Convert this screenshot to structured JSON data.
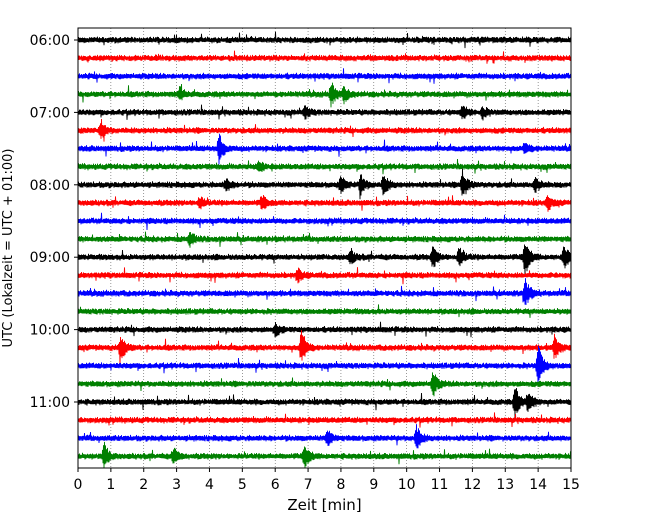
{
  "chart_data": {
    "type": "line",
    "title": "",
    "xlabel": "Zeit  [min]",
    "ylabel": "UTC (Lokalzeit = UTC + 01:00)",
    "xlim": [
      0,
      15
    ],
    "x_ticks": [
      "0",
      "1",
      "2",
      "3",
      "4",
      "5",
      "6",
      "7",
      "8",
      "9",
      "10",
      "11",
      "12",
      "13",
      "14",
      "15"
    ],
    "y_tick_labels": [
      "06:00",
      "07:00",
      "08:00",
      "09:00",
      "10:00",
      "11:00"
    ],
    "grid": "vertical dotted",
    "trace_colors": [
      "#000000",
      "#ff0000",
      "#0000ff",
      "#008000"
    ],
    "trace_interval_minutes": 15,
    "start_time": "06:00",
    "trace_count": 24,
    "events": [
      {
        "trace": "06:45",
        "x": 3.1,
        "amp": 0.5
      },
      {
        "trace": "06:45",
        "x": 7.7,
        "amp": 1.0
      },
      {
        "trace": "06:45",
        "x": 8.1,
        "amp": 0.6
      },
      {
        "trace": "07:00",
        "x": 6.9,
        "amp": 0.5
      },
      {
        "trace": "07:00",
        "x": 11.7,
        "amp": 0.6
      },
      {
        "trace": "07:00",
        "x": 12.3,
        "amp": 0.5
      },
      {
        "trace": "07:15",
        "x": 0.7,
        "amp": 0.8
      },
      {
        "trace": "07:30",
        "x": 4.3,
        "amp": 1.2
      },
      {
        "trace": "07:30",
        "x": 13.6,
        "amp": 0.5
      },
      {
        "trace": "07:45",
        "x": 5.5,
        "amp": 0.4
      },
      {
        "trace": "08:00",
        "x": 4.5,
        "amp": 0.5
      },
      {
        "trace": "08:00",
        "x": 8.0,
        "amp": 0.7
      },
      {
        "trace": "08:00",
        "x": 8.6,
        "amp": 0.9
      },
      {
        "trace": "08:00",
        "x": 9.3,
        "amp": 0.9
      },
      {
        "trace": "08:00",
        "x": 11.7,
        "amp": 1.3
      },
      {
        "trace": "08:00",
        "x": 13.9,
        "amp": 0.6
      },
      {
        "trace": "08:15",
        "x": 3.7,
        "amp": 0.5
      },
      {
        "trace": "08:15",
        "x": 5.6,
        "amp": 0.6
      },
      {
        "trace": "08:15",
        "x": 14.3,
        "amp": 0.6
      },
      {
        "trace": "08:45",
        "x": 3.4,
        "amp": 0.6
      },
      {
        "trace": "09:00",
        "x": 8.3,
        "amp": 0.6
      },
      {
        "trace": "09:00",
        "x": 10.8,
        "amp": 0.9
      },
      {
        "trace": "09:00",
        "x": 11.6,
        "amp": 0.8
      },
      {
        "trace": "09:00",
        "x": 13.6,
        "amp": 1.6
      },
      {
        "trace": "09:00",
        "x": 14.8,
        "amp": 1.1
      },
      {
        "trace": "09:15",
        "x": 6.7,
        "amp": 0.5
      },
      {
        "trace": "09:30",
        "x": 13.6,
        "amp": 1.3
      },
      {
        "trace": "10:00",
        "x": 6.0,
        "amp": 0.5
      },
      {
        "trace": "10:15",
        "x": 1.3,
        "amp": 1.2
      },
      {
        "trace": "10:15",
        "x": 6.8,
        "amp": 1.6
      },
      {
        "trace": "10:15",
        "x": 14.5,
        "amp": 1.0
      },
      {
        "trace": "10:30",
        "x": 14.0,
        "amp": 1.8
      },
      {
        "trace": "10:45",
        "x": 10.8,
        "amp": 1.0
      },
      {
        "trace": "11:00",
        "x": 13.3,
        "amp": 1.3
      },
      {
        "trace": "11:00",
        "x": 13.7,
        "amp": 1.0
      },
      {
        "trace": "11:30",
        "x": 7.6,
        "amp": 0.7
      },
      {
        "trace": "11:30",
        "x": 10.3,
        "amp": 1.0
      },
      {
        "trace": "11:45",
        "x": 0.8,
        "amp": 1.1
      },
      {
        "trace": "11:45",
        "x": 2.9,
        "amp": 0.7
      },
      {
        "trace": "11:45",
        "x": 6.9,
        "amp": 1.0
      }
    ]
  }
}
